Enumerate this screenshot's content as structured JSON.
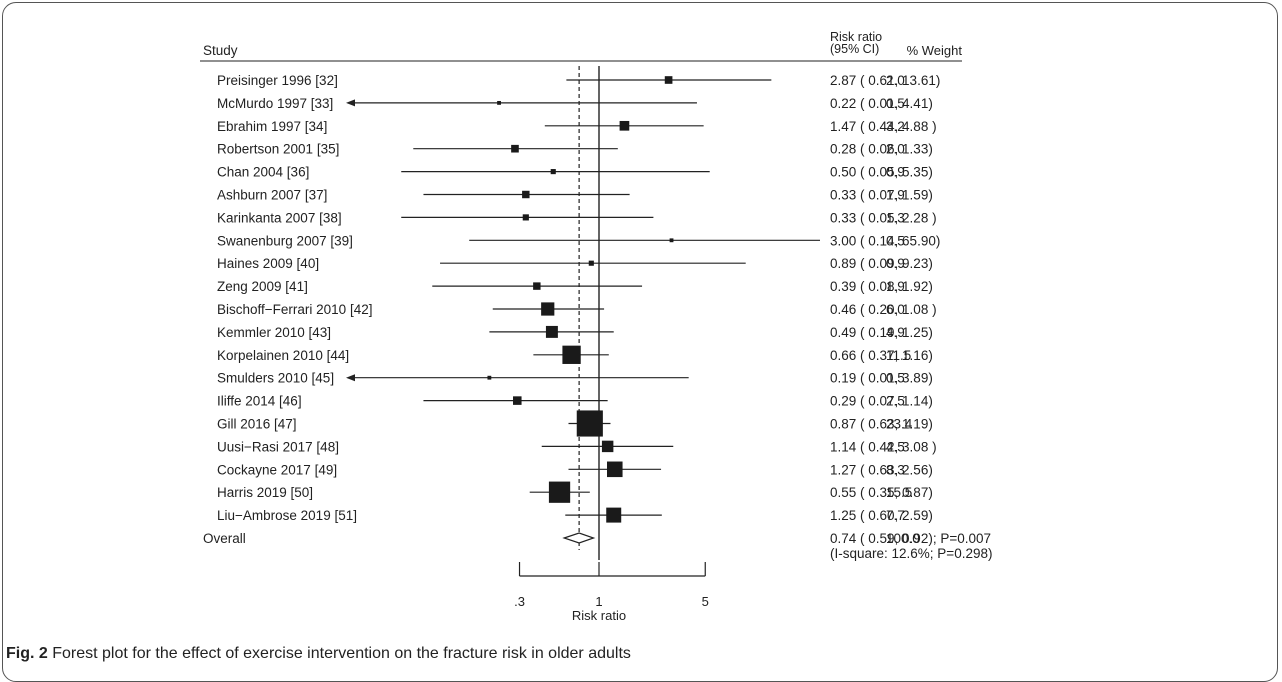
{
  "chart_data": {
    "type": "forest",
    "header": {
      "study": "Study",
      "rr_line1": "Risk ratio",
      "rr_line2": "(95% CI)",
      "weight": "% Weight"
    },
    "studies": [
      {
        "label": "Preisinger 1996 [32]",
        "rr": 2.87,
        "lo": 0.61,
        "hi": 13.61,
        "weight": 2.0,
        "text": "2.87 ( 0.61, 13.61)",
        "weight_text": "2.0"
      },
      {
        "label": "McMurdo 1997 [33]",
        "rr": 0.22,
        "lo": 0.01,
        "hi": 4.41,
        "weight": 0.5,
        "text": "0.22 ( 0.01, 4.41)",
        "weight_text": "0.5"
      },
      {
        "label": "Ebrahim 1997 [34]",
        "rr": 1.47,
        "lo": 0.44,
        "hi": 4.88,
        "weight": 3.2,
        "text": "1.47 ( 0.44, 4.88 )",
        "weight_text": "3.2"
      },
      {
        "label": "Robertson 2001 [35]",
        "rr": 0.28,
        "lo": 0.06,
        "hi": 1.33,
        "weight": 2.0,
        "text": "0.28 ( 0.06, 1.33)",
        "weight_text": "2.0"
      },
      {
        "label": "Chan 2004 [36]",
        "rr": 0.5,
        "lo": 0.05,
        "hi": 5.35,
        "weight": 0.9,
        "text": "0.50 ( 0.05, 5.35)",
        "weight_text": "0.9"
      },
      {
        "label": "Ashburn 2007 [37]",
        "rr": 0.33,
        "lo": 0.07,
        "hi": 1.59,
        "weight": 1.9,
        "text": "0.33 ( 0.07, 1.59)",
        "weight_text": "1.9"
      },
      {
        "label": "Karinkanta 2007 [38]",
        "rr": 0.33,
        "lo": 0.05,
        "hi": 2.28,
        "weight": 1.3,
        "text": "0.33 ( 0.05, 2.28 )",
        "weight_text": "1.3"
      },
      {
        "label": "Swanenburg 2007 [39]",
        "rr": 3.0,
        "lo": 0.14,
        "hi": 65.9,
        "weight": 0.5,
        "text": "3.00 ( 0.14, 65.90)",
        "weight_text": "0.5"
      },
      {
        "label": "Haines 2009 [40]",
        "rr": 0.89,
        "lo": 0.09,
        "hi": 9.23,
        "weight": 0.9,
        "text": "0.89 ( 0.09, 9.23)",
        "weight_text": "0.9"
      },
      {
        "label": "Zeng 2009 [41]",
        "rr": 0.39,
        "lo": 0.08,
        "hi": 1.92,
        "weight": 1.9,
        "text": "0.39 ( 0.08, 1.92)",
        "weight_text": "1.9"
      },
      {
        "label": "Bischoff−Ferrari 2010 [42]",
        "rr": 0.46,
        "lo": 0.2,
        "hi": 1.08,
        "weight": 6.0,
        "text": "0.46 ( 0.20, 1.08 )",
        "weight_text": "6.0"
      },
      {
        "label": "Kemmler 2010 [43]",
        "rr": 0.49,
        "lo": 0.19,
        "hi": 1.25,
        "weight": 4.9,
        "text": "0.49 ( 0.19, 1.25)",
        "weight_text": "4.9"
      },
      {
        "label": "Korpelainen 2010 [44]",
        "rr": 0.66,
        "lo": 0.37,
        "hi": 1.16,
        "weight": 11.5,
        "text": "0.66 ( 0.37, 1.16)",
        "weight_text": "11.5"
      },
      {
        "label": "Smulders 2010 [45]",
        "rr": 0.19,
        "lo": 0.01,
        "hi": 3.89,
        "weight": 0.5,
        "text": "0.19 ( 0.01, 3.89)",
        "weight_text": "0.5"
      },
      {
        "label": "Iliffe 2014 [46]",
        "rr": 0.29,
        "lo": 0.07,
        "hi": 1.14,
        "weight": 2.5,
        "text": "0.29 ( 0.07, 1.14)",
        "weight_text": "2.5"
      },
      {
        "label": "Gill 2016 [47]",
        "rr": 0.87,
        "lo": 0.63,
        "hi": 1.19,
        "weight": 23.4,
        "text": "0.87 ( 0.63, 1.19)",
        "weight_text": "23.4"
      },
      {
        "label": "Uusi−Rasi 2017 [48]",
        "rr": 1.14,
        "lo": 0.42,
        "hi": 3.08,
        "weight": 4.5,
        "text": "1.14 ( 0.42, 3.08 )",
        "weight_text": "4.5"
      },
      {
        "label": "Cockayne 2017 [49]",
        "rr": 1.27,
        "lo": 0.63,
        "hi": 2.56,
        "weight": 8.3,
        "text": "1.27 ( 0.63, 2.56)",
        "weight_text": "8.3"
      },
      {
        "label": "Harris 2019 [50]",
        "rr": 0.55,
        "lo": 0.35,
        "hi": 0.87,
        "weight": 15.5,
        "text": "0.55 ( 0.35, 0.87)",
        "weight_text": "15.5"
      },
      {
        "label": "Liu−Ambrose 2019 [51]",
        "rr": 1.25,
        "lo": 0.6,
        "hi": 2.59,
        "weight": 7.7,
        "text": "1.25 ( 0.60, 2.59)",
        "weight_text": "7.7"
      }
    ],
    "overall": {
      "label": "Overall",
      "rr": 0.74,
      "lo": 0.59,
      "hi": 0.92,
      "text": "0.74 ( 0.59, 0.92); P=0.007",
      "text2": "(I-square: 12.6%; P=0.298)",
      "weight_text": "100.0"
    },
    "x_axis": {
      "scale": "log",
      "label": "Risk ratio",
      "ticks": [
        {
          "value": 0.3,
          "label": ".3"
        },
        {
          "value": 1,
          "label": "1"
        },
        {
          "value": 5,
          "label": "5"
        }
      ]
    },
    "null_line": 1,
    "overall_line": 0.74
  },
  "caption": {
    "label": "Fig. 2",
    "text": " Forest plot for the effect of exercise intervention on the fracture risk in older adults"
  }
}
